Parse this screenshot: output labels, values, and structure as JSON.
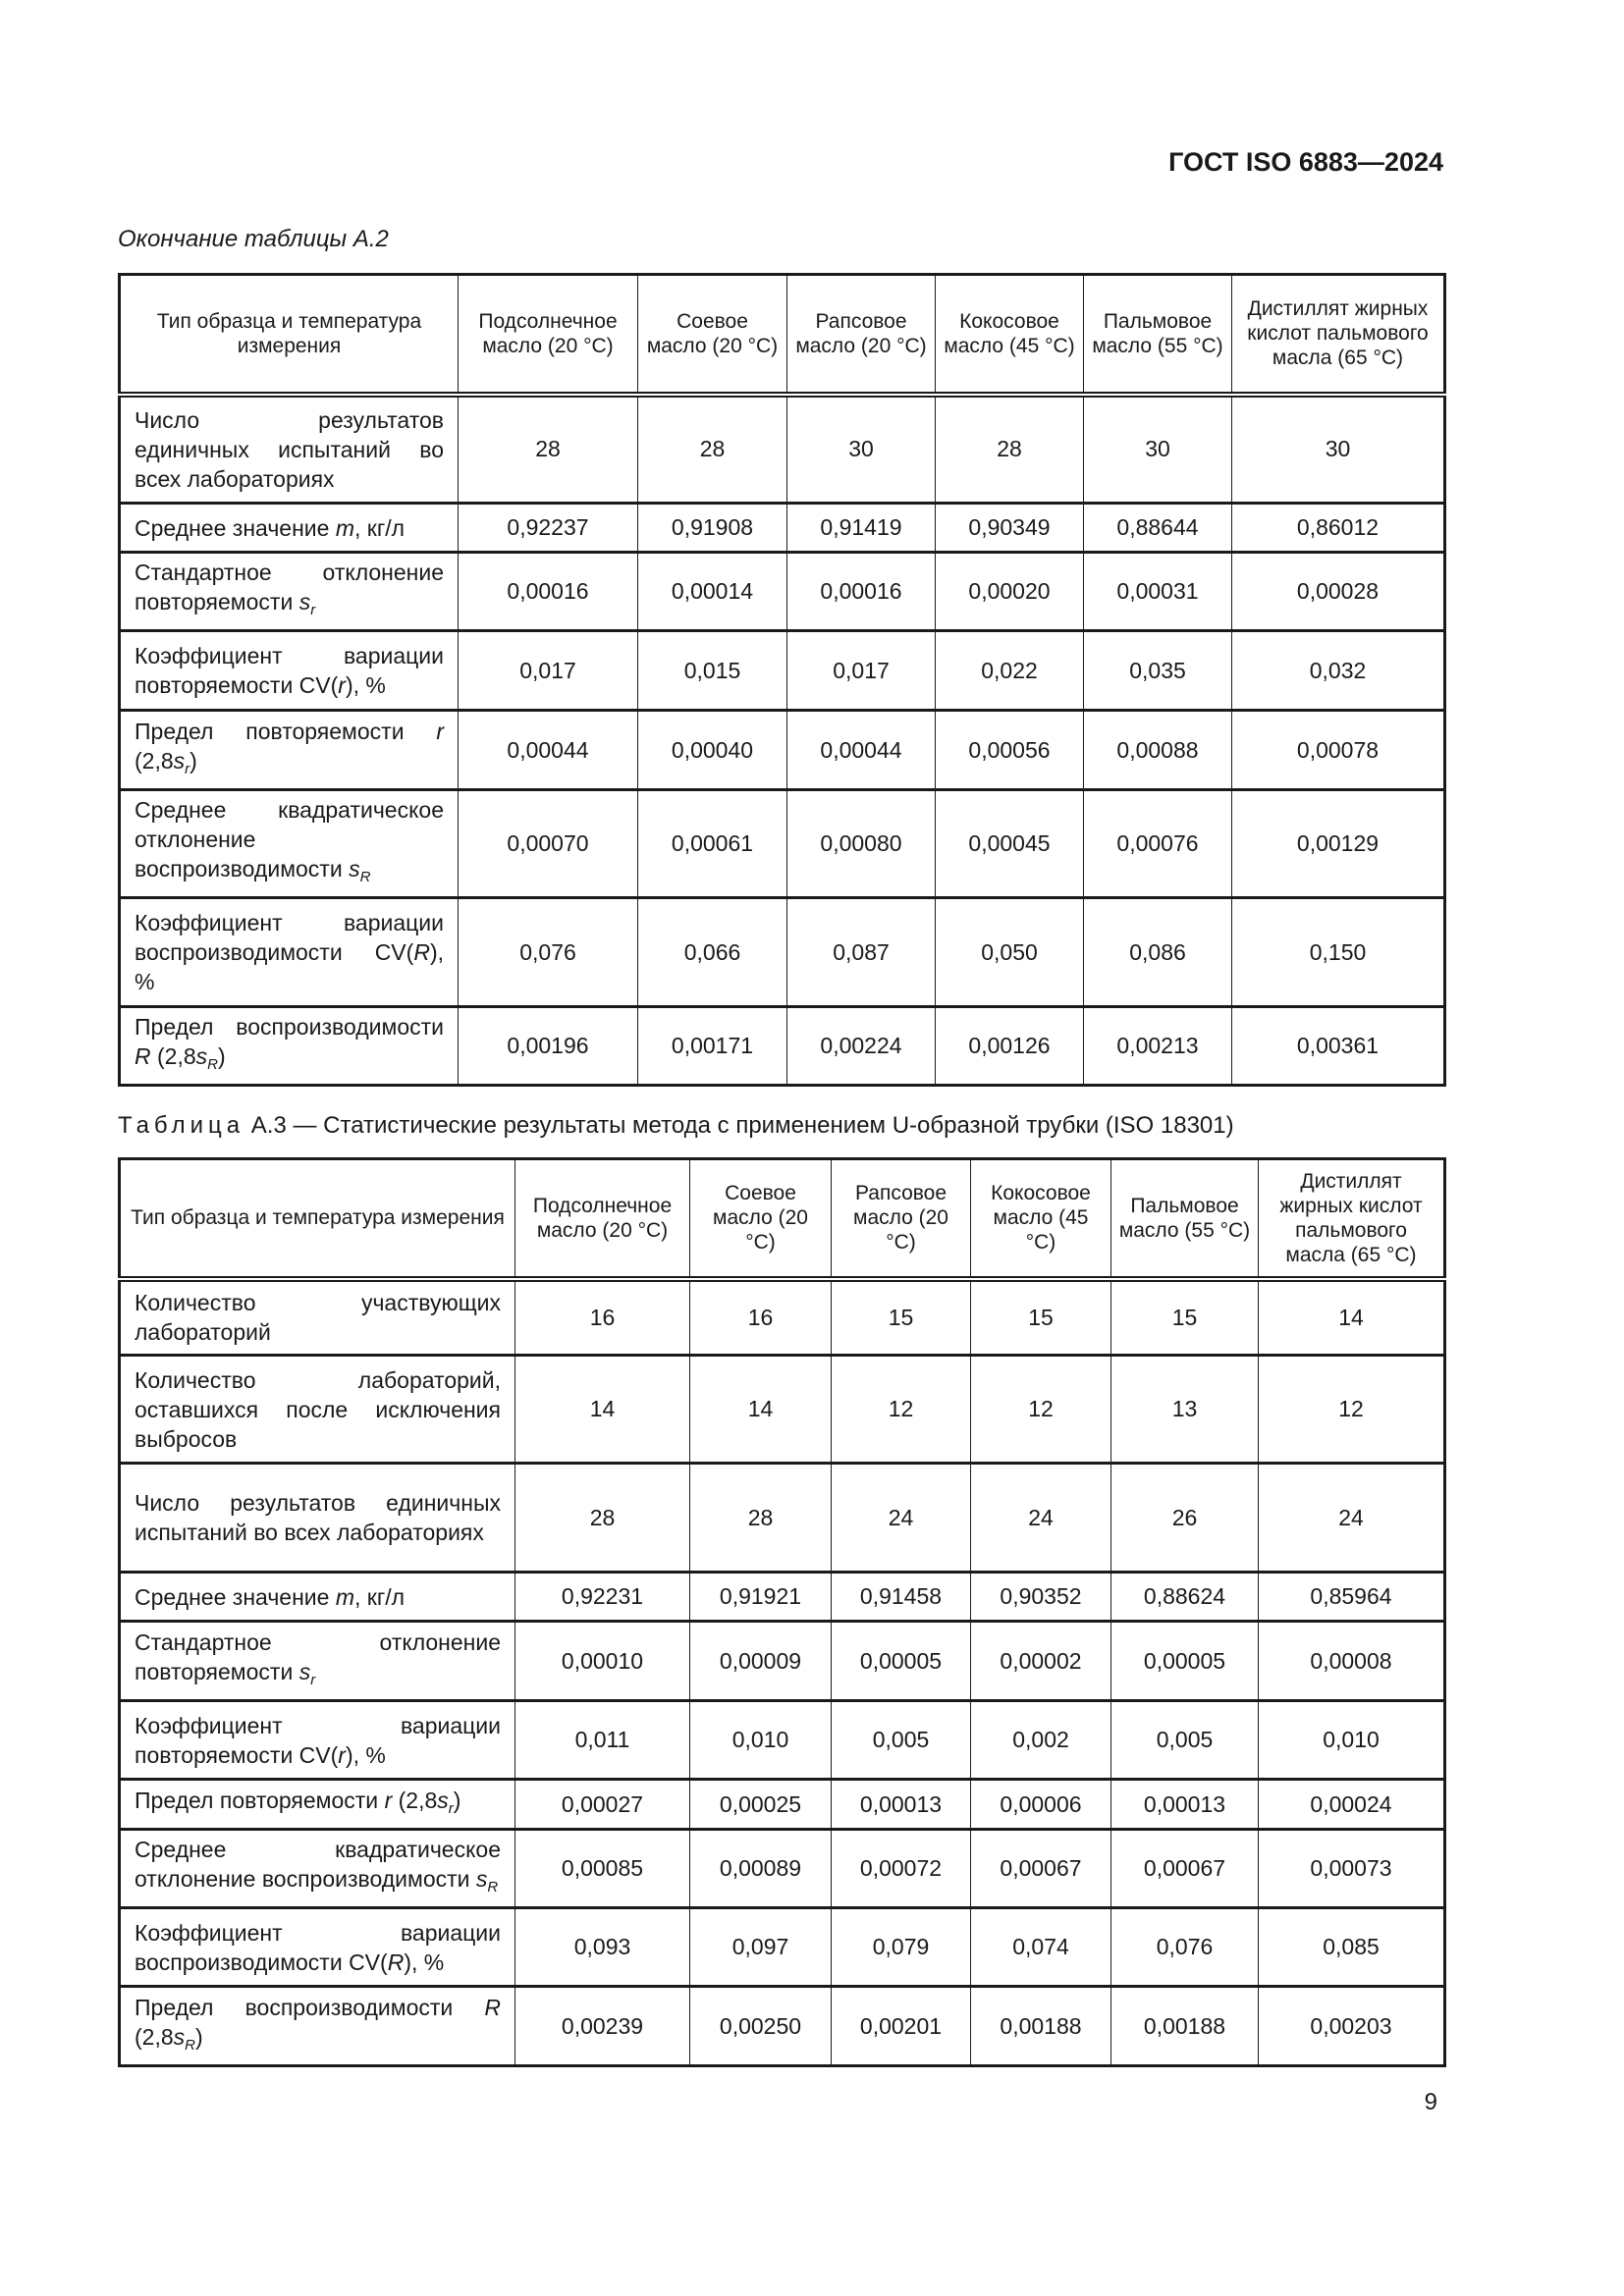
{
  "header": {
    "doc_code": "ГОСТ ISO 6883—2024"
  },
  "table_a2": {
    "caption": "Окончание таблицы А.2",
    "columns": [
      "Тип образца и температура измерения",
      "Подсолнечное масло (20 °С)",
      "Соевое масло (20 °С)",
      "Рапсовое масло (20 °С)",
      "Кокосовое масло (45 °С)",
      "Пальмовое масло (55 °С)",
      "Дистиллят жирных кислот пальмового масла (65 °С)"
    ],
    "rows": [
      {
        "label": [
          {
            "t": "Число результатов единичных испытаний во всех лабораториях"
          }
        ],
        "values": [
          "28",
          "28",
          "30",
          "28",
          "30",
          "30"
        ]
      },
      {
        "label": [
          {
            "t": "Среднее значение "
          },
          {
            "i": "m"
          },
          {
            "t": ", кг/л"
          }
        ],
        "values": [
          "0,92237",
          "0,91908",
          "0,91419",
          "0,90349",
          "0,88644",
          "0,86012"
        ]
      },
      {
        "label": [
          {
            "t": "Стандартное отклонение повторяемости "
          },
          {
            "i": "s"
          },
          {
            "sub": "r"
          }
        ],
        "values": [
          "0,00016",
          "0,00014",
          "0,00016",
          "0,00020",
          "0,00031",
          "0,00028"
        ]
      },
      {
        "label": [
          {
            "t": "Коэффициент вариации повторяемости CV("
          },
          {
            "i": "r"
          },
          {
            "t": "), %"
          }
        ],
        "values": [
          "0,017",
          "0,015",
          "0,017",
          "0,022",
          "0,035",
          "0,032"
        ]
      },
      {
        "label": [
          {
            "t": "Предел повторяемости "
          },
          {
            "i": "r"
          },
          {
            "t": " (2,8"
          },
          {
            "i": "s"
          },
          {
            "sub": "r"
          },
          {
            "t": ")"
          }
        ],
        "values": [
          "0,00044",
          "0,00040",
          "0,00044",
          "0,00056",
          "0,00088",
          "0,00078"
        ]
      },
      {
        "label": [
          {
            "t": "Среднее квадратическое отклонение воспроизводимости "
          },
          {
            "i": "s"
          },
          {
            "sub": "R"
          }
        ],
        "values": [
          "0,00070",
          "0,00061",
          "0,00080",
          "0,00045",
          "0,00076",
          "0,00129"
        ]
      },
      {
        "label": [
          {
            "t": "Коэффициент вариации воспроизводимости CV("
          },
          {
            "i": "R"
          },
          {
            "t": "), %"
          }
        ],
        "values": [
          "0,076",
          "0,066",
          "0,087",
          "0,050",
          "0,086",
          "0,150"
        ]
      },
      {
        "label": [
          {
            "t": "Предел воспроизводимости "
          },
          {
            "i": "R"
          },
          {
            "t": " (2,8"
          },
          {
            "i": "s"
          },
          {
            "sub": "R"
          },
          {
            "t": ")"
          }
        ],
        "values": [
          "0,00196",
          "0,00171",
          "0,00224",
          "0,00126",
          "0,00213",
          "0,00361"
        ]
      }
    ]
  },
  "table_a3": {
    "caption_prefix": "Таблица",
    "caption": "А.3 — Статистические результаты метода с применением U-образной трубки (ISO 18301)",
    "columns": [
      "Тип образца и температура измерения",
      "Подсолнечное масло (20 °С)",
      "Соевое масло (20 °С)",
      "Рапсовое масло (20 °С)",
      "Кокосовое масло (45 °С)",
      "Пальмовое масло (55 °С)",
      "Дистиллят жирных кислот пальмового масла (65 °С)"
    ],
    "rows": [
      {
        "label": [
          {
            "t": "Количество участвующих лабораторий"
          }
        ],
        "values": [
          "16",
          "16",
          "15",
          "15",
          "15",
          "14"
        ]
      },
      {
        "label": [
          {
            "t": "Количество лабораторий, оставшихся после исключения выбросов"
          }
        ],
        "values": [
          "14",
          "14",
          "12",
          "12",
          "13",
          "12"
        ]
      },
      {
        "label": [
          {
            "t": "Число результатов единичных испытаний во всех лабораториях"
          }
        ],
        "values": [
          "28",
          "28",
          "24",
          "24",
          "26",
          "24"
        ]
      },
      {
        "label": [
          {
            "t": "Среднее значение "
          },
          {
            "i": "m"
          },
          {
            "t": ", кг/л"
          }
        ],
        "values": [
          "0,92231",
          "0,91921",
          "0,91458",
          "0,90352",
          "0,88624",
          "0,85964"
        ]
      },
      {
        "label": [
          {
            "t": "Стандартное отклонение повторяемости "
          },
          {
            "i": "s"
          },
          {
            "sub": "r"
          }
        ],
        "values": [
          "0,00010",
          "0,00009",
          "0,00005",
          "0,00002",
          "0,00005",
          "0,00008"
        ]
      },
      {
        "label": [
          {
            "t": "Коэффициент вариации повторяемости CV("
          },
          {
            "i": "r"
          },
          {
            "t": "), %"
          }
        ],
        "values": [
          "0,011",
          "0,010",
          "0,005",
          "0,002",
          "0,005",
          "0,010"
        ]
      },
      {
        "label": [
          {
            "t": "Предел повторяемости "
          },
          {
            "i": "r"
          },
          {
            "t": " (2,8"
          },
          {
            "i": "s"
          },
          {
            "sub": "r"
          },
          {
            "t": ")"
          }
        ],
        "values": [
          "0,00027",
          "0,00025",
          "0,00013",
          "0,00006",
          "0,00013",
          "0,00024"
        ]
      },
      {
        "label": [
          {
            "t": "Среднее квадратическое отклонение воспроизводимости "
          },
          {
            "i": "s"
          },
          {
            "sub": "R"
          }
        ],
        "values": [
          "0,00085",
          "0,00089",
          "0,00072",
          "0,00067",
          "0,00067",
          "0,00073"
        ]
      },
      {
        "label": [
          {
            "t": "Коэффициент вариации воспроизводимости CV("
          },
          {
            "i": "R"
          },
          {
            "t": "), %"
          }
        ],
        "values": [
          "0,093",
          "0,097",
          "0,079",
          "0,074",
          "0,076",
          "0,085"
        ]
      },
      {
        "label": [
          {
            "t": "Предел воспроизводимости "
          },
          {
            "i": "R"
          },
          {
            "t": " (2,8"
          },
          {
            "i": "s"
          },
          {
            "sub": "R"
          },
          {
            "t": ")"
          }
        ],
        "values": [
          "0,00239",
          "0,00250",
          "0,00201",
          "0,00188",
          "0,00188",
          "0,00203"
        ]
      }
    ]
  },
  "footer": {
    "page_number": "9"
  }
}
